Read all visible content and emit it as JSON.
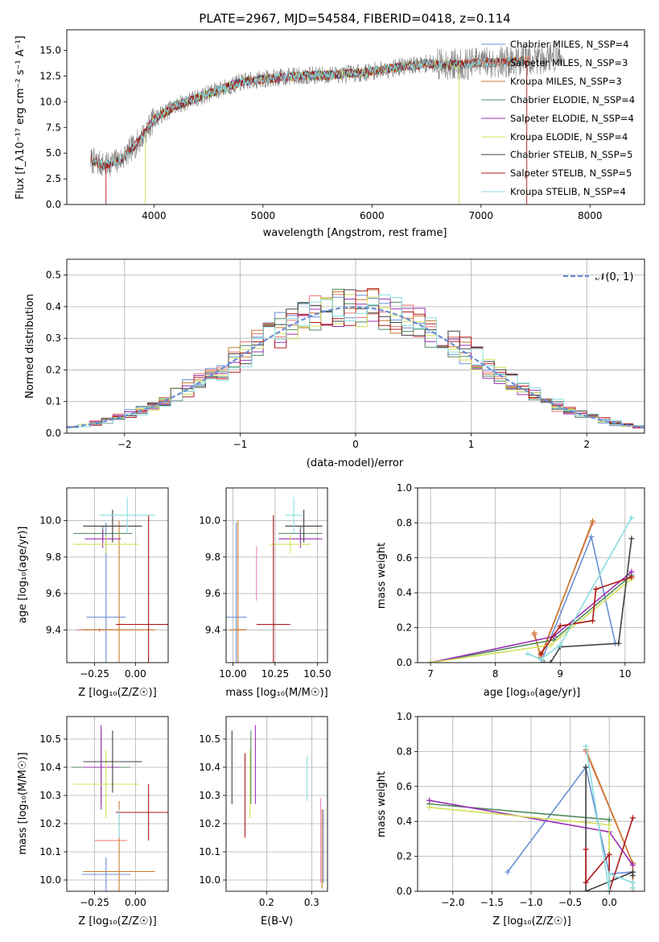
{
  "chart_data": [
    {
      "id": "spectrum",
      "type": "line",
      "title": "PLATE=2967, MJD=54584, FIBERID=0418, z=0.114",
      "xlabel": "wavelength [Angstrom, rest frame]",
      "ylabel": "Flux [f_λ10⁻¹⁷ erg cm⁻² s⁻¹ A⁻¹]",
      "xlim": [
        3200,
        8500
      ],
      "ylim": [
        0,
        17
      ],
      "xticks": [
        4000,
        5000,
        6000,
        7000,
        8000
      ],
      "yticks": [
        0.0,
        2.5,
        5.0,
        7.5,
        10.0,
        12.5,
        15.0
      ],
      "grid": false,
      "legend": "right",
      "data": {
        "name": "data",
        "color": "#808080",
        "x_range": [
          3420,
          7750
        ]
      },
      "continuum": {
        "x": [
          3420,
          3550,
          3700,
          3850,
          4000,
          4200,
          4500,
          4800,
          5000,
          5300,
          5600,
          5900,
          6200,
          6500,
          6800,
          7000,
          7300,
          7600,
          7750
        ],
        "y": [
          4.3,
          3.8,
          4.4,
          6.0,
          8.3,
          9.6,
          10.8,
          11.9,
          12.2,
          12.5,
          12.6,
          12.8,
          13.3,
          13.7,
          13.6,
          13.8,
          13.9,
          14.3,
          14.5
        ]
      },
      "series": [
        {
          "name": "Chabrier MILES, N_SSP=4",
          "color": "#6a8fd4",
          "x_range": [
            3420,
            7450
          ]
        },
        {
          "name": "Salpeter MILES, N_SSP=3",
          "color": "#e8766f",
          "x_range": [
            3420,
            7450
          ]
        },
        {
          "name": "Kroupa MILES, N_SSP=3",
          "color": "#c97a2e",
          "x_range": [
            3420,
            7450
          ]
        },
        {
          "name": "Chabrier ELODIE, N_SSP=4",
          "color": "#4f8a5c",
          "x_range": [
            3900,
            6800
          ]
        },
        {
          "name": "Salpeter ELODIE, N_SSP=4",
          "color": "#9b30b5",
          "x_range": [
            3900,
            6800
          ]
        },
        {
          "name": "Kroupa ELODIE, N_SSP=4",
          "color": "#d4e05a",
          "x_range": [
            3900,
            6800
          ]
        },
        {
          "name": "Chabrier STELIB, N_SSP=5",
          "color": "#404040",
          "x_range": [
            3420,
            7400
          ]
        },
        {
          "name": "Salpeter STELIB, N_SSP=5",
          "color": "#b01818",
          "x_range": [
            3420,
            7400
          ]
        },
        {
          "name": "Kroupa STELIB, N_SSP=4",
          "color": "#88dde0",
          "x_range": [
            3420,
            7400
          ]
        }
      ]
    },
    {
      "id": "residuals",
      "type": "line",
      "xlabel": "(data-model)/error",
      "ylabel": "Normed distribution",
      "xlim": [
        -2.5,
        2.5
      ],
      "ylim": [
        0,
        0.55
      ],
      "xticks": [
        -2,
        -1,
        0,
        1,
        2
      ],
      "yticks": [
        0.0,
        0.1,
        0.2,
        0.3,
        0.4,
        0.5
      ],
      "grid": true,
      "legend": "top-right",
      "reference": {
        "name": "𝒩(0, 1)",
        "color": "#6a8fd4",
        "mean": 0,
        "sigma": 1
      },
      "bin_width": 0.1,
      "series": [
        {
          "name": "Chabrier MILES",
          "color": "#6a8fd4"
        },
        {
          "name": "Salpeter MILES",
          "color": "#e8766f"
        },
        {
          "name": "Kroupa MILES",
          "color": "#c97a2e"
        },
        {
          "name": "Chabrier ELODIE",
          "color": "#4f8a5c"
        },
        {
          "name": "Salpeter ELODIE",
          "color": "#9b30b5"
        },
        {
          "name": "Kroupa ELODIE",
          "color": "#d4e05a"
        },
        {
          "name": "Chabrier STELIB",
          "color": "#404040"
        },
        {
          "name": "Salpeter STELIB",
          "color": "#b01818"
        },
        {
          "name": "Kroupa STELIB",
          "color": "#88dde0"
        }
      ]
    },
    {
      "id": "age-vs-Z",
      "type": "scatter",
      "xlabel": "Z [log₁₀(Z/Z☉)]",
      "ylabel": "age  [log₁₀(age/yr)]",
      "xlim": [
        -0.42,
        0.2
      ],
      "ylim": [
        9.22,
        10.18
      ],
      "xticks": [
        -0.25,
        0.0
      ],
      "yticks": [
        9.4,
        9.6,
        9.8,
        10.0
      ],
      "grid": true,
      "points": [
        {
          "color": "#6a8fd4",
          "x": -0.18,
          "y": 9.47,
          "xerr": 0.12,
          "yerr": 0.52
        },
        {
          "color": "#e8766f",
          "x": -0.22,
          "y": 9.4,
          "xerr": 0.14,
          "yerr": 0.01
        },
        {
          "color": "#c97a2e",
          "x": -0.1,
          "y": 9.4,
          "xerr": 0.22,
          "yerr": 0.6
        },
        {
          "color": "#4f8a5c",
          "x": -0.2,
          "y": 9.93,
          "xerr": 0.18,
          "yerr": 0.04
        },
        {
          "color": "#9b30b5",
          "x": -0.2,
          "y": 9.9,
          "xerr": 0.11,
          "yerr": 0.05
        },
        {
          "color": "#d4e05a",
          "x": -0.18,
          "y": 9.87,
          "xerr": 0.2,
          "yerr": 0.05
        },
        {
          "color": "#404040",
          "x": -0.14,
          "y": 9.97,
          "xerr": 0.18,
          "yerr": 0.09
        },
        {
          "color": "#b01818",
          "x": 0.08,
          "y": 9.43,
          "xerr": 0.2,
          "yerr": 0.6
        },
        {
          "color": "#88dde0",
          "x": -0.05,
          "y": 10.03,
          "xerr": 0.17,
          "yerr": 0.1
        }
      ]
    },
    {
      "id": "age-vs-mass",
      "type": "scatter",
      "xlabel": "mass [log₁₀(M/M☉)]",
      "ylabel": "",
      "xlim": [
        9.96,
        10.56
      ],
      "ylim": [
        9.22,
        10.18
      ],
      "xticks": [
        10.0,
        10.25,
        10.5
      ],
      "yticks": [
        9.4,
        9.6,
        9.8,
        10.0
      ],
      "grid": true,
      "points": [
        {
          "color": "#6a8fd4",
          "x": 10.02,
          "y": 9.47,
          "xerr": 0.06,
          "yerr": 0.52
        },
        {
          "color": "#e8766f",
          "x": 10.03,
          "y": 9.4,
          "xerr": 0.05,
          "yerr": 0.01
        },
        {
          "color": "#c97a2e",
          "x": 10.03,
          "y": 9.4,
          "xerr": 0.05,
          "yerr": 0.6
        },
        {
          "color": "#4f8a5c",
          "x": 10.4,
          "y": 9.93,
          "xerr": 0.13,
          "yerr": 0.04
        },
        {
          "color": "#9b30b5",
          "x": 10.4,
          "y": 9.9,
          "xerr": 0.13,
          "yerr": 0.05
        },
        {
          "color": "#d4e05a",
          "x": 10.34,
          "y": 9.87,
          "xerr": 0.12,
          "yerr": 0.05
        },
        {
          "color": "#404040",
          "x": 10.42,
          "y": 9.97,
          "xerr": 0.11,
          "yerr": 0.09
        },
        {
          "color": "#b01818",
          "x": 10.24,
          "y": 9.43,
          "xerr": 0.1,
          "yerr": 0.6
        },
        {
          "color": "#88dde0",
          "x": 10.36,
          "y": 10.03,
          "xerr": 0.05,
          "yerr": 0.1
        },
        {
          "color": "#e888c0",
          "x": 10.14,
          "y": 9.71,
          "xerr": 0.0,
          "yerr": 0.15
        }
      ]
    },
    {
      "id": "massweight-vs-age",
      "type": "line",
      "xlabel": "age  [log₁₀(age/yr)]",
      "ylabel": "mass weight",
      "xlim": [
        6.8,
        10.3
      ],
      "ylim": [
        0,
        1
      ],
      "xticks": [
        7,
        8,
        9,
        10
      ],
      "yticks": [
        0.0,
        0.2,
        0.4,
        0.6,
        0.8,
        1.0
      ],
      "grid": true,
      "series": [
        {
          "name": "Chabrier MILES",
          "color": "#6a8fd4",
          "x": [
            8.7,
            9.48,
            9.85
          ],
          "y": [
            0.0,
            0.72,
            0.11
          ]
        },
        {
          "name": "Salpeter MILES",
          "color": "#e8766f",
          "x": [
            8.6,
            8.7,
            9.5
          ],
          "y": [
            0.16,
            0.04,
            0.8
          ]
        },
        {
          "name": "Kroupa MILES",
          "color": "#c97a2e",
          "x": [
            8.6,
            8.7,
            9.5
          ],
          "y": [
            0.17,
            0.03,
            0.81
          ]
        },
        {
          "name": "Chabrier ELODIE",
          "color": "#4f8a5c",
          "x": [
            7.0,
            8.9,
            10.1
          ],
          "y": [
            0.0,
            0.13,
            0.5
          ]
        },
        {
          "name": "Salpeter ELODIE",
          "color": "#9b30b5",
          "x": [
            7.0,
            8.9,
            10.1
          ],
          "y": [
            0.0,
            0.15,
            0.52
          ]
        },
        {
          "name": "Kroupa ELODIE",
          "color": "#d4e05a",
          "x": [
            7.0,
            8.85,
            10.1
          ],
          "y": [
            0.0,
            0.1,
            0.48
          ]
        },
        {
          "name": "Chabrier STELIB",
          "color": "#404040",
          "x": [
            8.75,
            8.85,
            9.0,
            9.9,
            10.1
          ],
          "y": [
            0.0,
            0.0,
            0.09,
            0.11,
            0.71
          ]
        },
        {
          "name": "Salpeter STELIB",
          "color": "#b01818",
          "x": [
            8.7,
            9.0,
            9.5,
            9.55,
            10.1
          ],
          "y": [
            0.05,
            0.21,
            0.24,
            0.42,
            0.49
          ]
        },
        {
          "name": "Kroupa STELIB",
          "color": "#88dde0",
          "x": [
            8.5,
            8.7,
            9.0,
            10.1
          ],
          "y": [
            0.05,
            0.02,
            0.1,
            0.83
          ]
        }
      ]
    },
    {
      "id": "mass-vs-Z",
      "type": "scatter",
      "xlabel": "Z [log₁₀(Z/Z☉)]",
      "ylabel": "mass [log₁₀(M/M☉)]",
      "xlim": [
        -0.42,
        0.2
      ],
      "ylim": [
        9.96,
        10.58
      ],
      "xticks": [
        -0.25,
        0.0
      ],
      "yticks": [
        10.0,
        10.1,
        10.2,
        10.3,
        10.4,
        10.5
      ],
      "grid": true,
      "points": [
        {
          "color": "#6a8fd4",
          "x": -0.18,
          "y": 10.02,
          "xerr": 0.15,
          "yerr": 0.06
        },
        {
          "color": "#e8766f",
          "x": -0.15,
          "y": 10.14,
          "xerr": 0.1,
          "yerr": 0.0
        },
        {
          "color": "#c97a2e",
          "x": -0.1,
          "y": 10.03,
          "xerr": 0.22,
          "yerr": 0.25
        },
        {
          "color": "#4f8a5c",
          "x": -0.21,
          "y": 10.4,
          "xerr": 0.18,
          "yerr": 0.13
        },
        {
          "color": "#9b30b5",
          "x": -0.21,
          "y": 10.4,
          "xerr": 0.11,
          "yerr": 0.15
        },
        {
          "color": "#d4e05a",
          "x": -0.18,
          "y": 10.34,
          "xerr": 0.2,
          "yerr": 0.12
        },
        {
          "color": "#404040",
          "x": -0.14,
          "y": 10.42,
          "xerr": 0.18,
          "yerr": 0.11
        },
        {
          "color": "#b01818",
          "x": 0.08,
          "y": 10.24,
          "xerr": 0.2,
          "yerr": 0.1
        },
        {
          "color": "#88dde0",
          "x": -0.1,
          "y": 10.2,
          "xerr": 0.0,
          "yerr": 0.05
        }
      ]
    },
    {
      "id": "mass-vs-EBV",
      "type": "scatter",
      "xlabel": "E(B-V)",
      "ylabel": "",
      "xlim": [
        0.11,
        0.335
      ],
      "ylim": [
        9.96,
        10.58
      ],
      "xticks": [
        0.2,
        0.3
      ],
      "yticks": [
        10.0,
        10.1,
        10.2,
        10.3,
        10.4,
        10.5
      ],
      "grid": true,
      "points": [
        {
          "color": "#404040",
          "x": 0.123,
          "y": 10.4,
          "xerr": 0.0,
          "yerr": 0.13
        },
        {
          "color": "#b01818",
          "x": 0.152,
          "y": 10.3,
          "xerr": 0.0,
          "yerr": 0.15
        },
        {
          "color": "#d4e05a",
          "x": 0.163,
          "y": 10.34,
          "xerr": 0.0,
          "yerr": 0.12
        },
        {
          "color": "#4f8a5c",
          "x": 0.165,
          "y": 10.4,
          "xerr": 0.0,
          "yerr": 0.13
        },
        {
          "color": "#9b30b5",
          "x": 0.175,
          "y": 10.41,
          "xerr": 0.0,
          "yerr": 0.14
        },
        {
          "color": "#88dde0",
          "x": 0.29,
          "y": 10.36,
          "xerr": 0.0,
          "yerr": 0.08
        },
        {
          "color": "#e888c0",
          "x": 0.32,
          "y": 10.14,
          "xerr": 0.0,
          "yerr": 0.15
        },
        {
          "color": "#c97a2e",
          "x": 0.323,
          "y": 10.11,
          "xerr": 0.0,
          "yerr": 0.14
        },
        {
          "color": "#6a8fd4",
          "x": 0.326,
          "y": 10.12,
          "xerr": 0.0,
          "yerr": 0.13
        }
      ]
    },
    {
      "id": "massweight-vs-Z",
      "type": "line",
      "xlabel": "Z [log₁₀(Z/Z☉)]",
      "ylabel": "mass weight",
      "xlim": [
        -2.45,
        0.45
      ],
      "ylim": [
        0,
        1
      ],
      "xticks": [
        -2.0,
        -1.5,
        -1.0,
        -0.5,
        0.0
      ],
      "yticks": [
        0.0,
        0.2,
        0.4,
        0.6,
        0.8,
        1.0
      ],
      "grid": true,
      "series": [
        {
          "name": "Chabrier MILES",
          "color": "#6a8fd4",
          "x": [
            -1.3,
            -0.3,
            0.0,
            0.3
          ],
          "y": [
            0.11,
            0.71,
            0.1,
            0.11
          ]
        },
        {
          "name": "Salpeter MILES",
          "color": "#e8766f",
          "x": [
            -0.3,
            0.3,
            0.3
          ],
          "y": [
            0.8,
            0.16,
            0.02
          ]
        },
        {
          "name": "Kroupa MILES",
          "color": "#c97a2e",
          "x": [
            -0.3,
            0.3,
            0.3
          ],
          "y": [
            0.81,
            0.16,
            0.0
          ]
        },
        {
          "name": "Chabrier ELODIE",
          "color": "#4f8a5c",
          "x": [
            -2.3,
            0.0,
            0.0
          ],
          "y": [
            0.5,
            0.41,
            0.0
          ]
        },
        {
          "name": "Salpeter ELODIE",
          "color": "#9b30b5",
          "x": [
            -2.3,
            0.0,
            0.3
          ],
          "y": [
            0.52,
            0.34,
            0.15
          ]
        },
        {
          "name": "Kroupa ELODIE",
          "color": "#d4e05a",
          "x": [
            -2.3,
            0.0,
            0.0
          ],
          "y": [
            0.48,
            0.38,
            0.0
          ]
        },
        {
          "name": "Chabrier STELIB",
          "color": "#404040",
          "x": [
            -0.3,
            -0.3,
            0.3,
            0.3
          ],
          "y": [
            0.71,
            0.0,
            0.11,
            0.09
          ]
        },
        {
          "name": "Salpeter STELIB",
          "color": "#b01818",
          "x": [
            -0.3,
            -0.3,
            0.0,
            0.0,
            0.3
          ],
          "y": [
            0.24,
            0.05,
            0.21,
            0.0,
            0.42
          ]
        },
        {
          "name": "Kroupa STELIB",
          "color": "#88dde0",
          "x": [
            -0.3,
            0.0,
            0.0,
            0.3,
            0.3
          ],
          "y": [
            0.83,
            0.0,
            0.1,
            0.05,
            0.02
          ]
        }
      ]
    }
  ]
}
